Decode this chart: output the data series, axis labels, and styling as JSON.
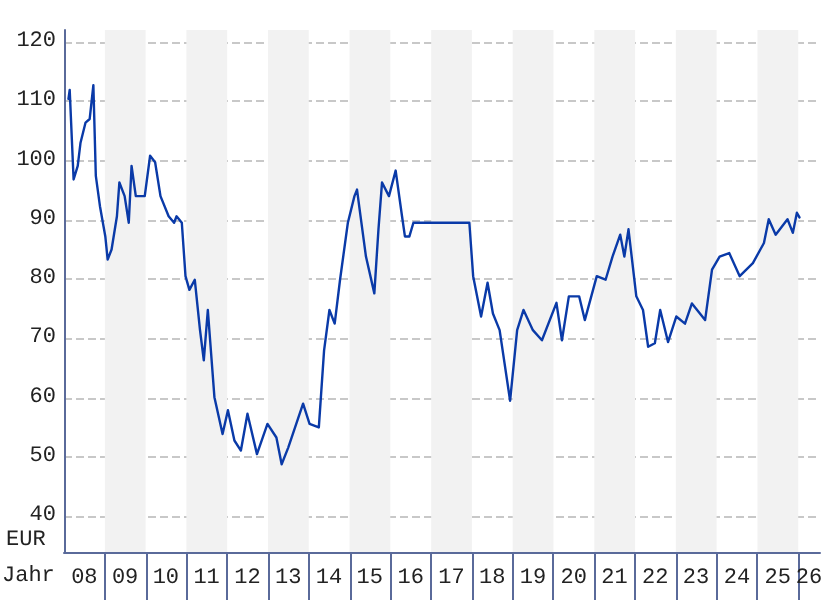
{
  "chart_data": {
    "type": "line",
    "xlabel": "Jahr",
    "ylabel": "EUR",
    "x": [
      "2008-02-10",
      "2008-02-21",
      "2008-03-27",
      "2008-05-03",
      "2008-05-28",
      "2008-07-12",
      "2008-08-18",
      "2008-09-20",
      "2008-10-12",
      "2008-11-18",
      "2009-01-05",
      "2009-01-26",
      "2009-03-02",
      "2009-04-19",
      "2009-05-11",
      "2009-06-27",
      "2009-08-03",
      "2009-08-28",
      "2009-10-05",
      "2009-12-24",
      "2010-02-10",
      "2010-03-27",
      "2010-05-14",
      "2010-07-26",
      "2010-09-13",
      "2010-10-05",
      "2010-11-21",
      "2010-12-24",
      "2011-01-28",
      "2011-03-17",
      "2011-05-03",
      "2011-06-06",
      "2011-07-12",
      "2011-09-09",
      "2011-11-21",
      "2012-01-08",
      "2012-03-06",
      "2012-05-03",
      "2012-07-01",
      "2012-09-24",
      "2012-12-27",
      "2013-03-17",
      "2013-05-03",
      "2013-07-01",
      "2013-11-11",
      "2014-01-08",
      "2014-04-01",
      "2014-05-18",
      "2014-07-05",
      "2014-08-21",
      "2014-10-08",
      "2014-12-17",
      "2015-02-14",
      "2015-03-09",
      "2015-04-01",
      "2015-05-28",
      "2015-08-11",
      "2015-09-17",
      "2015-10-19",
      "2015-12-20",
      "2016-02-18",
      "2016-04-15",
      "2016-05-11",
      "2016-06-20",
      "2016-07-26",
      "2017-12-09",
      "2018-01-12",
      "2018-03-24",
      "2018-05-21",
      "2018-07-08",
      "2018-09-06",
      "2018-12-09",
      "2019-02-10",
      "2019-04-08",
      "2019-07-01",
      "2019-09-20",
      "2020-01-28",
      "2020-03-17",
      "2020-05-18",
      "2020-08-18",
      "2020-10-08",
      "2021-01-23",
      "2021-04-12",
      "2021-06-13",
      "2021-08-21",
      "2021-09-27",
      "2021-11-03",
      "2022-01-12",
      "2022-03-13",
      "2022-04-28",
      "2022-06-27",
      "2022-08-14",
      "2022-10-23",
      "2023-01-05",
      "2023-03-24",
      "2023-05-25",
      "2023-09-20",
      "2023-11-21",
      "2024-01-28",
      "2024-04-23",
      "2024-07-26",
      "2024-11-21",
      "2025-02-28",
      "2025-04-12",
      "2025-06-13",
      "2025-09-27",
      "2025-11-14",
      "2025-12-20",
      "2026-01-12"
    ],
    "series": [
      {
        "color": "#0a3aa8",
        "values": [
          110.4,
          111.9,
          96.8,
          99.1,
          103,
          106.4,
          107,
          112.7,
          97.4,
          92.3,
          87.2,
          83.3,
          85,
          90.6,
          96.3,
          94,
          89.5,
          99.1,
          94,
          94,
          100.8,
          99.7,
          94,
          90.6,
          89.5,
          90.6,
          89.5,
          80.5,
          78.2,
          79.9,
          71.4,
          66.3,
          74.8,
          60.1,
          53.9,
          57.9,
          52.8,
          51.1,
          57.3,
          50.5,
          55.6,
          53.3,
          48.8,
          51.6,
          59,
          55.6,
          55,
          68,
          74.8,
          72.5,
          79.9,
          89.5,
          94,
          95.1,
          91.8,
          83.8,
          77.6,
          88.4,
          96.3,
          94,
          98.3,
          90.6,
          87.2,
          87.2,
          89.5,
          89.5,
          80.5,
          73.7,
          79.4,
          74.2,
          71.4,
          59.5,
          71.4,
          74.8,
          71.4,
          69.7,
          76,
          69.7,
          77.1,
          77.1,
          73.1,
          80.5,
          79.9,
          83.8,
          87.5,
          83.8,
          88.4,
          77.1,
          74.8,
          68.6,
          69.2,
          74.8,
          69.4,
          73.7,
          72.5,
          75.9,
          73.1,
          81.6,
          83.8,
          84.4,
          80.5,
          82.7,
          86.1,
          90.1,
          87.5,
          90.1,
          87.8,
          91.2,
          90.4
        ]
      }
    ],
    "xlim": [
      "2008-01-01",
      "2026-07-15"
    ],
    "xticks": [
      {
        "value": "2008-07-01",
        "label": "08"
      },
      {
        "value": "2009-07-01",
        "label": "09"
      },
      {
        "value": "2010-07-01",
        "label": "10"
      },
      {
        "value": "2011-07-01",
        "label": "11"
      },
      {
        "value": "2012-07-01",
        "label": "12"
      },
      {
        "value": "2013-07-01",
        "label": "13"
      },
      {
        "value": "2014-07-01",
        "label": "14"
      },
      {
        "value": "2015-07-01",
        "label": "15"
      },
      {
        "value": "2016-07-01",
        "label": "16"
      },
      {
        "value": "2017-07-01",
        "label": "17"
      },
      {
        "value": "2018-07-01",
        "label": "18"
      },
      {
        "value": "2019-07-01",
        "label": "19"
      },
      {
        "value": "2020-07-01",
        "label": "20"
      },
      {
        "value": "2021-07-01",
        "label": "21"
      },
      {
        "value": "2022-07-01",
        "label": "22"
      },
      {
        "value": "2023-07-01",
        "label": "23"
      },
      {
        "value": "2024-07-01",
        "label": "24"
      },
      {
        "value": "2025-07-01",
        "label": "25"
      },
      {
        "value": "2026-04-08",
        "label": "26"
      }
    ],
    "ylim": [
      34,
      122
    ],
    "yticks": [
      40,
      50,
      60,
      70,
      80,
      90,
      100,
      110,
      120
    ],
    "bands": [
      {
        "axis": "x",
        "from": "2009",
        "to": "2010",
        "color": "#f2f2f2"
      },
      {
        "axis": "x",
        "from": "2011",
        "to": "2012",
        "color": "#f2f2f2"
      },
      {
        "axis": "x",
        "from": "2013",
        "to": "2014",
        "color": "#f2f2f2"
      },
      {
        "axis": "x",
        "from": "2015",
        "to": "2016",
        "color": "#f2f2f2"
      },
      {
        "axis": "x",
        "from": "2017",
        "to": "2018",
        "color": "#f2f2f2"
      },
      {
        "axis": "x",
        "from": "2019",
        "to": "2020",
        "color": "#f2f2f2"
      },
      {
        "axis": "x",
        "from": "2021",
        "to": "2022",
        "color": "#f2f2f2"
      },
      {
        "axis": "x",
        "from": "2023",
        "to": "2024",
        "color": "#f2f2f2"
      },
      {
        "axis": "x",
        "from": "2025",
        "to": "2026",
        "color": "#f2f2f2"
      }
    ],
    "grid": "y",
    "marker": "none",
    "line_style": "solid"
  }
}
